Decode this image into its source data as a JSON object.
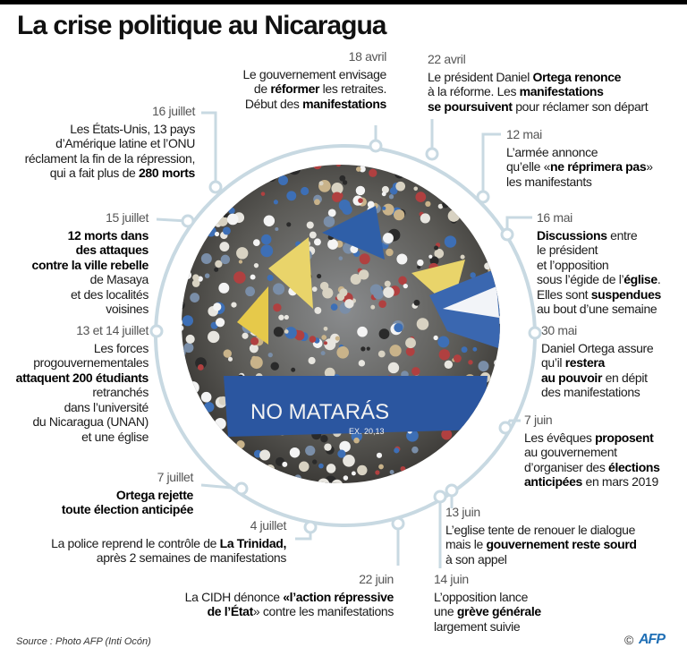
{
  "title": "La crise politique au Nicaragua",
  "colors": {
    "ring": "#c8d9e2",
    "afp_blue": "#1f6fb5",
    "flag_blue": "#2f5fa8"
  },
  "photo": {
    "banner_text": "NO MATARÁS",
    "banner_sub": "EX. 20,13"
  },
  "events": [
    {
      "id": "18-avril",
      "date": "18 avril",
      "lines": [
        [
          {
            "t": "Le gouvernement envisage"
          }
        ],
        [
          {
            "t": "de "
          },
          {
            "t": "réformer",
            "b": 1
          },
          {
            "t": " les retraites."
          }
        ],
        [
          {
            "t": "Début des "
          },
          {
            "t": "manifestations",
            "b": 1
          }
        ]
      ]
    },
    {
      "id": "22-avril",
      "date": "22 avril",
      "lines": [
        [
          {
            "t": "Le président Daniel "
          },
          {
            "t": "Ortega renonce",
            "b": 1
          }
        ],
        [
          {
            "t": "à la réforme. Les "
          },
          {
            "t": "manifestations",
            "b": 1
          }
        ],
        [
          {
            "t": "se poursuivent",
            "b": 1
          },
          {
            "t": " pour réclamer son départ"
          }
        ]
      ]
    },
    {
      "id": "12-mai",
      "date": "12 mai",
      "lines": [
        [
          {
            "t": "L’armée annonce"
          }
        ],
        [
          {
            "t": "qu’elle «"
          },
          {
            "t": "ne réprimera pas",
            "b": 1
          },
          {
            "t": "»"
          }
        ],
        [
          {
            "t": "les manifestants"
          }
        ]
      ]
    },
    {
      "id": "16-mai",
      "date": "16 mai",
      "lines": [
        [
          {
            "t": "Discussions",
            "b": 1
          },
          {
            "t": " entre"
          }
        ],
        [
          {
            "t": "le président"
          }
        ],
        [
          {
            "t": "et l’opposition"
          }
        ],
        [
          {
            "t": "sous l’égide de l’"
          },
          {
            "t": "église",
            "b": 1
          },
          {
            "t": "."
          }
        ],
        [
          {
            "t": "Elles sont "
          },
          {
            "t": "suspendues",
            "b": 1
          }
        ],
        [
          {
            "t": "au bout d’une semaine"
          }
        ]
      ]
    },
    {
      "id": "30-mai",
      "date": "30 mai",
      "lines": [
        [
          {
            "t": "Daniel Ortega assure"
          }
        ],
        [
          {
            "t": "qu’il "
          },
          {
            "t": "restera",
            "b": 1
          }
        ],
        [
          {
            "t": "au pouvoir",
            "b": 1
          },
          {
            "t": " en dépit"
          }
        ],
        [
          {
            "t": "des manifestations"
          }
        ]
      ]
    },
    {
      "id": "7-juin",
      "date": "7 juin",
      "lines": [
        [
          {
            "t": "Les évêques "
          },
          {
            "t": "proposent",
            "b": 1
          }
        ],
        [
          {
            "t": "au gouvernement"
          }
        ],
        [
          {
            "t": "d’organiser des "
          },
          {
            "t": "élections",
            "b": 1
          }
        ],
        [
          {
            "t": "anticipées",
            "b": 1
          },
          {
            "t": " en mars 2019"
          }
        ]
      ]
    },
    {
      "id": "13-juin",
      "date": "13 juin",
      "lines": [
        [
          {
            "t": "L’eglise tente de renouer le dialogue"
          }
        ],
        [
          {
            "t": "mais le "
          },
          {
            "t": "gouvernement reste sourd",
            "b": 1
          }
        ],
        [
          {
            "t": "à son appel"
          }
        ]
      ]
    },
    {
      "id": "14-juin",
      "date": "14 juin",
      "lines": [
        [
          {
            "t": "L’opposition lance"
          }
        ],
        [
          {
            "t": "une "
          },
          {
            "t": "grève générale",
            "b": 1
          }
        ],
        [
          {
            "t": "largement suivie"
          }
        ]
      ]
    },
    {
      "id": "22-juin",
      "date": "22 juin",
      "lines": [
        [
          {
            "t": "La CIDH dénonce "
          },
          {
            "t": "«l’action répressive",
            "b": 1
          }
        ],
        [
          {
            "t": "de l’État",
            "b": 1
          },
          {
            "t": "» contre les manifestations"
          }
        ]
      ]
    },
    {
      "id": "4-juillet",
      "date": "4 juillet",
      "lines": [
        [
          {
            "t": "La police reprend le contrôle de "
          },
          {
            "t": "La Trinidad,",
            "b": 1
          }
        ],
        [
          {
            "t": "après 2 semaines de manifestations"
          }
        ]
      ]
    },
    {
      "id": "7-juillet",
      "date": "7 juillet",
      "lines": [
        [
          {
            "t": "Ortega rejette",
            "b": 1
          }
        ],
        [
          {
            "t": "toute élection anticipée",
            "b": 1
          }
        ]
      ]
    },
    {
      "id": "13-14-juillet",
      "date": "13 et 14 juillet",
      "lines": [
        [
          {
            "t": "Les forces"
          }
        ],
        [
          {
            "t": "progouvernementales"
          }
        ],
        [
          {
            "t": "attaquent 200 étudiants",
            "b": 1
          }
        ],
        [
          {
            "t": "retranchés"
          }
        ],
        [
          {
            "t": "dans l’université"
          }
        ],
        [
          {
            "t": "du Nicaragua (UNAN)"
          }
        ],
        [
          {
            "t": "et une église"
          }
        ]
      ]
    },
    {
      "id": "15-juillet",
      "date": "15 juillet",
      "lines": [
        [
          {
            "t": "12 morts dans",
            "b": 1
          }
        ],
        [
          {
            "t": "des attaques",
            "b": 1
          }
        ],
        [
          {
            "t": "contre la ville rebelle",
            "b": 1
          }
        ],
        [
          {
            "t": "de Masaya"
          }
        ],
        [
          {
            "t": "et des localités"
          }
        ],
        [
          {
            "t": "voisines"
          }
        ]
      ]
    },
    {
      "id": "16-juillet",
      "date": "16 juillet",
      "lines": [
        [
          {
            "t": "Les États-Unis, 13 pays"
          }
        ],
        [
          {
            "t": "d’Amérique latine et l’ONU"
          }
        ],
        [
          {
            "t": "réclament la fin de la répression,"
          }
        ],
        [
          {
            "t": "qui a fait plus de "
          },
          {
            "t": "280 morts",
            "b": 1
          }
        ]
      ]
    }
  ],
  "source": "Source : Photo AFP (Inti Ocón)",
  "copyright": "©",
  "logo": "AFP"
}
